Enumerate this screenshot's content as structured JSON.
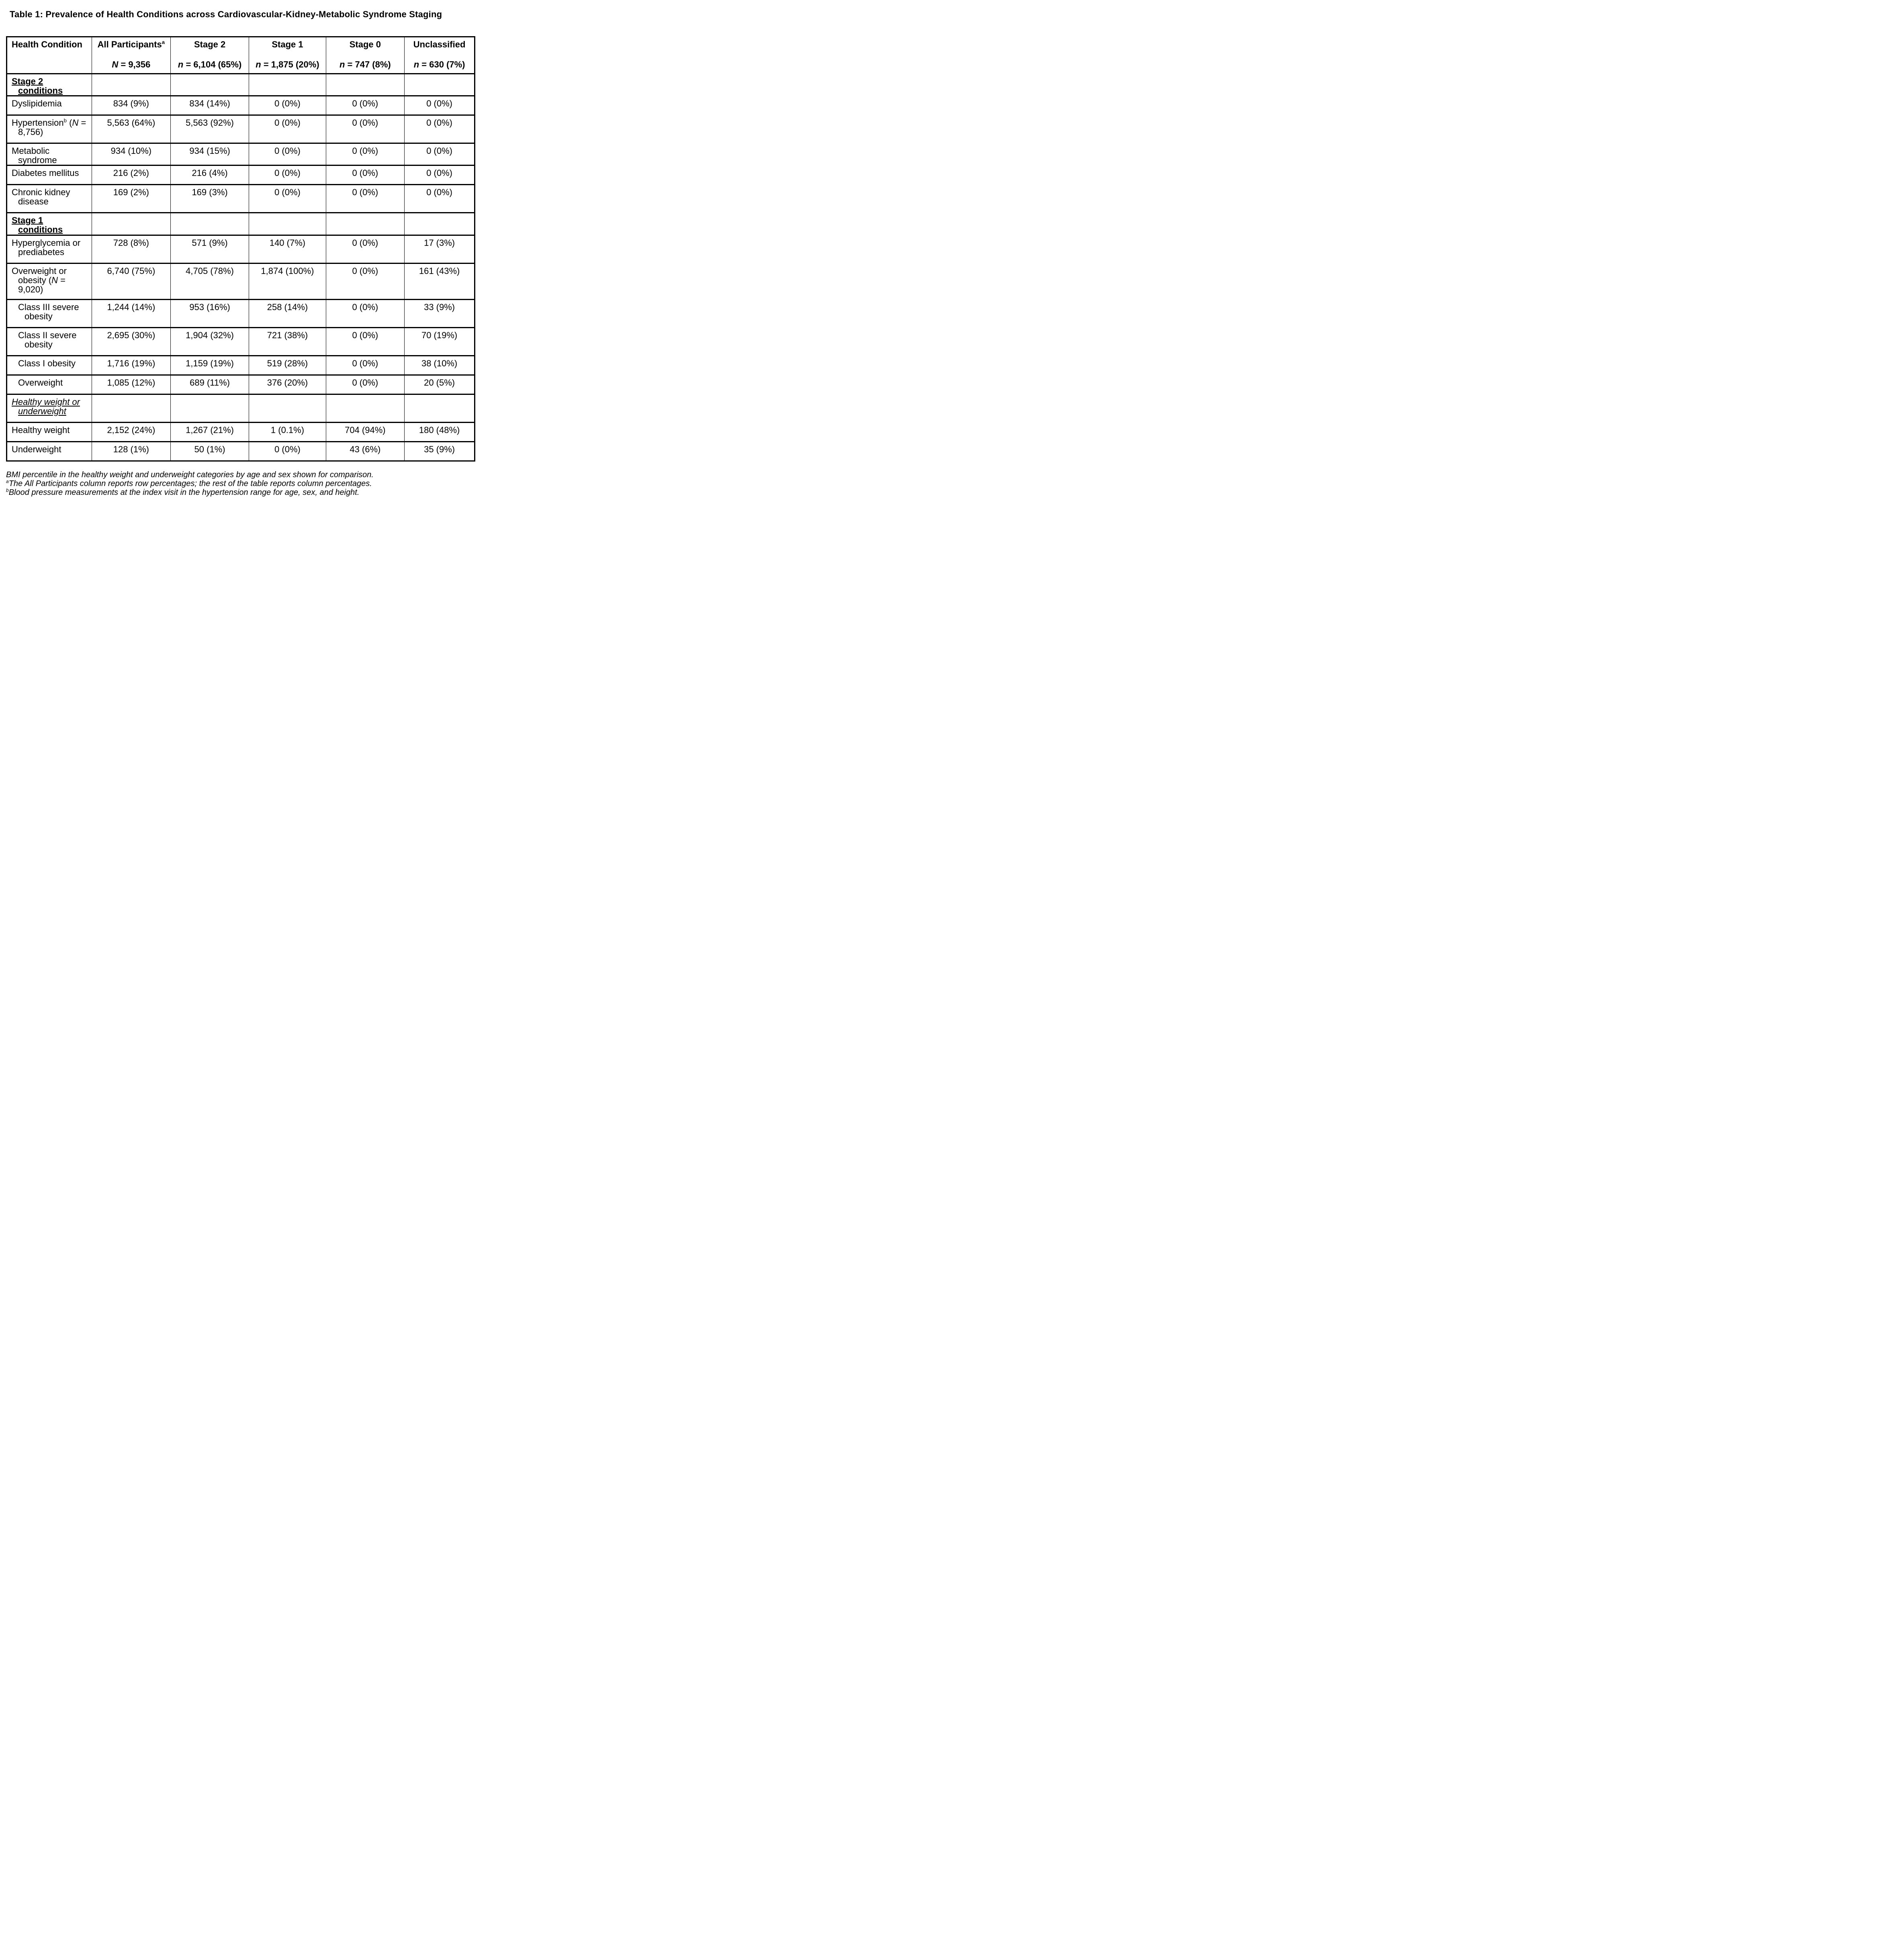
{
  "page": {
    "title": "Table 1: Prevalence of Health Conditions across Cardiovascular-Kidney-Metabolic Syndrome Staging"
  },
  "colors": {
    "text": "#000000",
    "background": "#ffffff",
    "border": "#000000"
  },
  "table": {
    "columns": [
      {
        "title": "Health Condition",
        "sup": "",
        "n_label": "",
        "n_rest": ""
      },
      {
        "title": "All Participants",
        "sup": "a",
        "n_label": "N",
        "n_rest": " = 9,356"
      },
      {
        "title": "Stage 2",
        "sup": "",
        "n_label": "n",
        "n_rest": " = 6,104 (65%)"
      },
      {
        "title": "Stage 1",
        "sup": "",
        "n_label": "n",
        "n_rest": " = 1,875 (20%)"
      },
      {
        "title": "Stage 0",
        "sup": "",
        "n_label": "n",
        "n_rest": " = 747 (8%)"
      },
      {
        "title": "Unclassified",
        "sup": "",
        "n_label": "n",
        "n_rest": " = 630 (7%)"
      }
    ],
    "rows": [
      {
        "style": "section-bold",
        "h": "h1",
        "indent": 0,
        "label": [
          [
            "t",
            "Stage 2 conditions"
          ]
        ],
        "values": [
          "",
          "",
          "",
          "",
          ""
        ]
      },
      {
        "style": "data",
        "h": "h1",
        "indent": 0,
        "label": [
          [
            "t",
            "Dyslipidemia"
          ]
        ],
        "values": [
          "834 (9%)",
          "834 (14%)",
          "0 (0%)",
          "0 (0%)",
          "0 (0%)"
        ]
      },
      {
        "style": "data",
        "h": "h2",
        "indent": 0,
        "label": [
          [
            "t",
            "Hypertension"
          ],
          [
            "sup",
            "b"
          ],
          [
            "t",
            " ("
          ],
          [
            "i",
            "N"
          ],
          [
            "t",
            " =\n8,756)"
          ]
        ],
        "values": [
          "5,563 (64%)",
          "5,563 (92%)",
          "0 (0%)",
          "0 (0%)",
          "0 (0%)"
        ]
      },
      {
        "style": "data",
        "h": "h1",
        "indent": 0,
        "label": [
          [
            "t",
            "Metabolic syndrome"
          ]
        ],
        "values": [
          "934 (10%)",
          "934 (15%)",
          "0 (0%)",
          "0 (0%)",
          "0 (0%)"
        ]
      },
      {
        "style": "data",
        "h": "h1",
        "indent": 0,
        "label": [
          [
            "t",
            "Diabetes mellitus"
          ]
        ],
        "values": [
          "216 (2%)",
          "216 (4%)",
          "0 (0%)",
          "0 (0%)",
          "0 (0%)"
        ]
      },
      {
        "style": "data",
        "h": "h2",
        "indent": 0,
        "label": [
          [
            "t",
            "Chronic kidney\ndisease"
          ]
        ],
        "values": [
          "169 (2%)",
          "169 (3%)",
          "0 (0%)",
          "0 (0%)",
          "0 (0%)"
        ]
      },
      {
        "style": "section-bold",
        "h": "h1",
        "indent": 0,
        "label": [
          [
            "t",
            "Stage 1 conditions"
          ]
        ],
        "values": [
          "",
          "",
          "",
          "",
          ""
        ]
      },
      {
        "style": "data",
        "h": "h2",
        "indent": 0,
        "label": [
          [
            "t",
            "Hyperglycemia or\nprediabetes"
          ]
        ],
        "values": [
          "728 (8%)",
          "571 (9%)",
          "140 (7%)",
          "0 (0%)",
          "17 (3%)"
        ]
      },
      {
        "style": "data",
        "h": "h3",
        "indent": 0,
        "label": [
          [
            "t",
            "Overweight or\nobesity ("
          ],
          [
            "i",
            "N"
          ],
          [
            "t",
            " =\n9,020)"
          ]
        ],
        "values": [
          "6,740 (75%)",
          "4,705 (78%)",
          "1,874 (100%)",
          "0 (0%)",
          "161 (43%)"
        ]
      },
      {
        "style": "data",
        "h": "h2",
        "indent": 1,
        "label": [
          [
            "t",
            "Class III severe\nobesity"
          ]
        ],
        "values": [
          "1,244 (14%)",
          "953 (16%)",
          "258 (14%)",
          "0 (0%)",
          "33 (9%)"
        ]
      },
      {
        "style": "data",
        "h": "h2",
        "indent": 1,
        "label": [
          [
            "t",
            "Class II severe\nobesity"
          ]
        ],
        "values": [
          "2,695 (30%)",
          "1,904 (32%)",
          "721 (38%)",
          "0 (0%)",
          "70 (19%)"
        ]
      },
      {
        "style": "data",
        "h": "h1",
        "indent": 1,
        "label": [
          [
            "t",
            "Class I obesity"
          ]
        ],
        "values": [
          "1,716 (19%)",
          "1,159 (19%)",
          "519 (28%)",
          "0 (0%)",
          "38 (10%)"
        ]
      },
      {
        "style": "data",
        "h": "h1",
        "indent": 1,
        "label": [
          [
            "t",
            "Overweight"
          ]
        ],
        "values": [
          "1,085 (12%)",
          "689 (11%)",
          "376 (20%)",
          "0 (0%)",
          "20 (5%)"
        ]
      },
      {
        "style": "section-italic",
        "h": "h2",
        "indent": 0,
        "label": [
          [
            "t",
            "Healthy weight or\nunderweight"
          ]
        ],
        "values": [
          "",
          "",
          "",
          "",
          ""
        ]
      },
      {
        "style": "data",
        "h": "h1",
        "indent": 0,
        "label": [
          [
            "t",
            "Healthy weight"
          ]
        ],
        "values": [
          "2,152 (24%)",
          "1,267 (21%)",
          "1 (0.1%)",
          "704 (94%)",
          "180 (48%)"
        ]
      },
      {
        "style": "data",
        "h": "h1",
        "indent": 0,
        "label": [
          [
            "t",
            "Underweight"
          ]
        ],
        "values": [
          "128 (1%)",
          "50 (1%)",
          "0 (0%)",
          "43 (6%)",
          "35 (9%)"
        ]
      }
    ]
  },
  "footnotes": [
    {
      "sup": "",
      "text": "BMI percentile in the healthy weight and underweight categories by age and sex shown for comparison."
    },
    {
      "sup": "a",
      "text": "The All Participants column reports row percentages; the rest of the table reports column percentages."
    },
    {
      "sup": "b",
      "text": "Blood pressure measurements at the index visit in the hypertension range for age, sex, and height."
    }
  ]
}
